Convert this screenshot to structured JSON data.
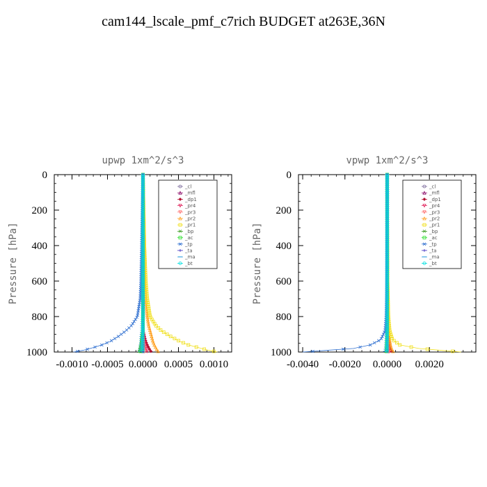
{
  "title": "cam144_lscale_pmf_c7rich  BUDGET at263E,36N",
  "colors": {
    "_cl": "#7f6f9f",
    "_mfl": "#8b0d6b",
    "_dp1": "#b01030",
    "_pr4": "#e0205a",
    "_pr3": "#ff6f6f",
    "_pr2": "#ffa020",
    "_pr1": "#f0e020",
    "_bp": "#3a9a20",
    "_ac": "#30e030",
    "_tp": "#3070d0",
    "_ta": "#4030c0",
    "_ma": "#30a0e0",
    "_bt": "#00e0e0"
  },
  "chart_data": [
    {
      "type": "line",
      "title": "upwp   1xm^2/s^3",
      "xlabel": "",
      "ylabel": "Pressure  [hPa]",
      "xlim": [
        -0.00125,
        0.00125
      ],
      "ylim": [
        1000,
        0
      ],
      "xticks": [
        -0.001,
        -0.0005,
        0,
        0.0005,
        0.001
      ],
      "xtick_labels": [
        "-0.0010",
        "-0.0005",
        "0.0000",
        "0.0005",
        "0.0010"
      ],
      "yticks": [
        0,
        200,
        400,
        600,
        800,
        1000
      ],
      "ytick_labels": [
        "0",
        "200",
        "400",
        "600",
        "800",
        "1000"
      ],
      "legend_position": "top-right",
      "pressure": [
        0,
        200,
        400,
        600,
        700,
        750,
        800,
        850,
        880,
        910,
        940,
        960,
        975,
        990,
        1000
      ],
      "series": [
        {
          "name": "_cl",
          "values": [
            0,
            0,
            0,
            0,
            0,
            0,
            0,
            0,
            0,
            0,
            0,
            0,
            0,
            0,
            0
          ]
        },
        {
          "name": "_mfl",
          "values": [
            0,
            0,
            0,
            0,
            0,
            0,
            0,
            0,
            0,
            0,
            0,
            0,
            0,
            0,
            0
          ]
        },
        {
          "name": "_dp1",
          "values": [
            0,
            0,
            0,
            0,
            0,
            0,
            0,
            0,
            0,
            2e-05,
            4e-05,
            6e-05,
            8e-05,
            0.0001,
            0.00012
          ]
        },
        {
          "name": "_pr4",
          "values": [
            0,
            0,
            0,
            0,
            0,
            0,
            0,
            0,
            0,
            1e-05,
            2e-05,
            3e-05,
            4e-05,
            5e-05,
            6e-05
          ]
        },
        {
          "name": "_pr3",
          "values": [
            0,
            0,
            0,
            0,
            0,
            0,
            0,
            0,
            0,
            0,
            1e-05,
            1e-05,
            2e-05,
            2e-05,
            3e-05
          ]
        },
        {
          "name": "_pr2",
          "values": [
            0,
            1e-05,
            2e-05,
            3e-05,
            4e-05,
            5e-05,
            6e-05,
            8e-05,
            0.0001,
            0.00012,
            0.00014,
            0.00016,
            0.00018,
            0.0002,
            0.00022
          ]
        },
        {
          "name": "_pr1",
          "values": [
            0,
            1e-05,
            2e-05,
            4e-05,
            6e-05,
            8e-05,
            0.0001,
            0.00018,
            0.00026,
            0.00038,
            0.00052,
            0.00064,
            0.00078,
            0.00092,
            0.00105
          ]
        },
        {
          "name": "_bp",
          "values": [
            0,
            0,
            0,
            0,
            0,
            0,
            0,
            0,
            0,
            -1e-05,
            -2e-05,
            -3e-05,
            -4e-05,
            -5e-05,
            -6e-05
          ]
        },
        {
          "name": "_ac",
          "values": [
            0,
            0,
            0,
            0,
            0,
            0,
            0,
            0,
            0,
            -1e-05,
            -2e-05,
            -2e-05,
            -3e-05,
            -3e-05,
            -4e-05
          ]
        },
        {
          "name": "_tp",
          "values": [
            0,
            -1e-05,
            -2e-05,
            -3e-05,
            -4e-05,
            -6e-05,
            -8e-05,
            -0.00016,
            -0.00024,
            -0.00034,
            -0.00046,
            -0.00058,
            -0.0007,
            -0.00084,
            -0.00098
          ]
        },
        {
          "name": "_ta",
          "values": [
            0,
            0,
            0,
            0,
            0,
            0,
            0,
            0,
            0,
            0,
            0,
            0,
            0,
            0,
            0
          ]
        },
        {
          "name": "_ma",
          "values": [
            0,
            0,
            0,
            0,
            0,
            0,
            0,
            -1e-05,
            -1e-05,
            -2e-05,
            -2e-05,
            -3e-05,
            -3e-05,
            -4e-05,
            -4e-05
          ]
        },
        {
          "name": "_bt",
          "values": [
            0,
            0,
            0,
            0,
            0,
            0,
            0,
            0,
            0,
            0,
            0,
            0,
            0,
            0,
            0
          ]
        }
      ]
    },
    {
      "type": "line",
      "title": "vpwp   1xm^2/s^3",
      "xlabel": "",
      "ylabel": "Pressure  [hPa]",
      "xlim": [
        -0.0042,
        0.0042
      ],
      "ylim": [
        1000,
        0
      ],
      "xticks": [
        -0.004,
        -0.002,
        0,
        0.002
      ],
      "xtick_labels": [
        "-0.0040",
        "-0.0020",
        "0.0000",
        "0.0020"
      ],
      "yticks": [
        0,
        200,
        400,
        600,
        800,
        1000
      ],
      "ytick_labels": [
        "0",
        "200",
        "400",
        "600",
        "800",
        "1000"
      ],
      "legend_position": "top-right",
      "pressure": [
        0,
        200,
        400,
        600,
        700,
        800,
        880,
        930,
        960,
        980,
        990,
        1000
      ],
      "series": [
        {
          "name": "_cl",
          "values": [
            0,
            0,
            0,
            0,
            0,
            0,
            0,
            0,
            0,
            0,
            0,
            0
          ]
        },
        {
          "name": "_mfl",
          "values": [
            0,
            0,
            0,
            0,
            0,
            0,
            0,
            0,
            0,
            0,
            0,
            0
          ]
        },
        {
          "name": "_dp1",
          "values": [
            0,
            0,
            0,
            0,
            0,
            0,
            3e-05,
            6e-05,
            0.0001,
            0.00014,
            0.00018,
            0.00022
          ]
        },
        {
          "name": "_pr4",
          "values": [
            0,
            0,
            0,
            0,
            0,
            0,
            2e-05,
            4e-05,
            6e-05,
            8e-05,
            0.0001,
            0.00012
          ]
        },
        {
          "name": "_pr3",
          "values": [
            0,
            0,
            0,
            0,
            0,
            0,
            1e-05,
            2e-05,
            4e-05,
            6e-05,
            8e-05,
            0.0001
          ]
        },
        {
          "name": "_pr2",
          "values": [
            0,
            0,
            1e-05,
            2e-05,
            3e-05,
            5e-05,
            8e-05,
            0.00012,
            0.00016,
            0.0002,
            0.00025,
            0.0003
          ]
        },
        {
          "name": "_pr1",
          "values": [
            0,
            0,
            1e-05,
            2e-05,
            4e-05,
            6e-05,
            0.00012,
            0.00025,
            0.0006,
            0.0015,
            0.0025,
            0.0035
          ]
        },
        {
          "name": "_bp",
          "values": [
            0,
            0,
            0,
            0,
            0,
            0,
            -1e-05,
            -2e-05,
            -3e-05,
            -4e-05,
            -5e-05,
            -6e-05
          ]
        },
        {
          "name": "_ac",
          "values": [
            0,
            0,
            0,
            0,
            0,
            0,
            0,
            -1e-05,
            -2e-05,
            -2e-05,
            -3e-05,
            -4e-05
          ]
        },
        {
          "name": "_tp",
          "values": [
            0,
            0,
            -1e-05,
            -2e-05,
            -3e-05,
            -5e-05,
            -0.0001,
            -0.0003,
            -0.0008,
            -0.0016,
            -0.0028,
            -0.004
          ]
        },
        {
          "name": "_ta",
          "values": [
            0,
            0,
            0,
            0,
            0,
            0,
            0,
            0,
            0,
            0,
            0,
            0
          ]
        },
        {
          "name": "_ma",
          "values": [
            0,
            0,
            0,
            0,
            0,
            0,
            -1e-05,
            -2e-05,
            -4e-05,
            -6e-05,
            -8e-05,
            -0.0001
          ]
        },
        {
          "name": "_bt",
          "values": [
            0,
            0,
            0,
            0,
            0,
            0,
            0,
            0,
            0,
            0,
            0,
            0
          ]
        }
      ]
    }
  ]
}
